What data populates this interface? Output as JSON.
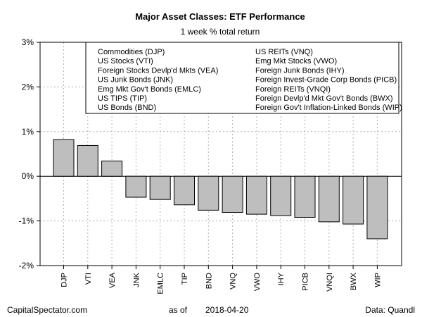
{
  "chart_data": {
    "type": "bar",
    "title": "Major Asset Classes: ETF Performance",
    "subtitle": "1 week % total return",
    "categories": [
      "DJP",
      "VTI",
      "VEA",
      "JNK",
      "EMLC",
      "TIP",
      "BND",
      "VNQ",
      "VWO",
      "IHY",
      "PICB",
      "VNQI",
      "BWX",
      "WIP"
    ],
    "values": [
      0.82,
      0.69,
      0.34,
      -0.47,
      -0.52,
      -0.64,
      -0.76,
      -0.81,
      -0.85,
      -0.88,
      -0.92,
      -1.02,
      -1.07,
      -1.4
    ],
    "ylim": [
      -2,
      3
    ],
    "yticks": [
      -2,
      -1,
      0,
      1,
      2,
      3
    ],
    "ytick_labels": [
      "-2%",
      "-1%",
      "0%",
      "1%",
      "2%",
      "3%"
    ],
    "grid": true,
    "bar_color": "#bebebe",
    "legend_position": "top",
    "legend_entries": [
      "Commodities (DJP)",
      "US Stocks (VTI)",
      "Foreign Stocks Devlp'd Mkts (VEA)",
      "US Junk Bonds (JNK)",
      "Emg Mkt Gov't Bonds (EMLC)",
      "US TIPS (TIP)",
      "US Bonds (BND)",
      "US REITs (VNQ)",
      "Emg Mkt Stocks (VWO)",
      "Foreign Junk Bonds (IHY)",
      "Foreign Invest-Grade Corp Bonds (PICB)",
      "Foreign REITs (VNQI)",
      "Foreign Devlp'd Mkt Gov't Bonds (BWX)",
      "Foreign Gov't Inflation-Linked Bonds (WIP)"
    ]
  },
  "footer": {
    "source": "CapitalSpectator.com",
    "date_prefix": "as of",
    "date": "2018-04-20",
    "data_credit": "Data: Quandl"
  }
}
